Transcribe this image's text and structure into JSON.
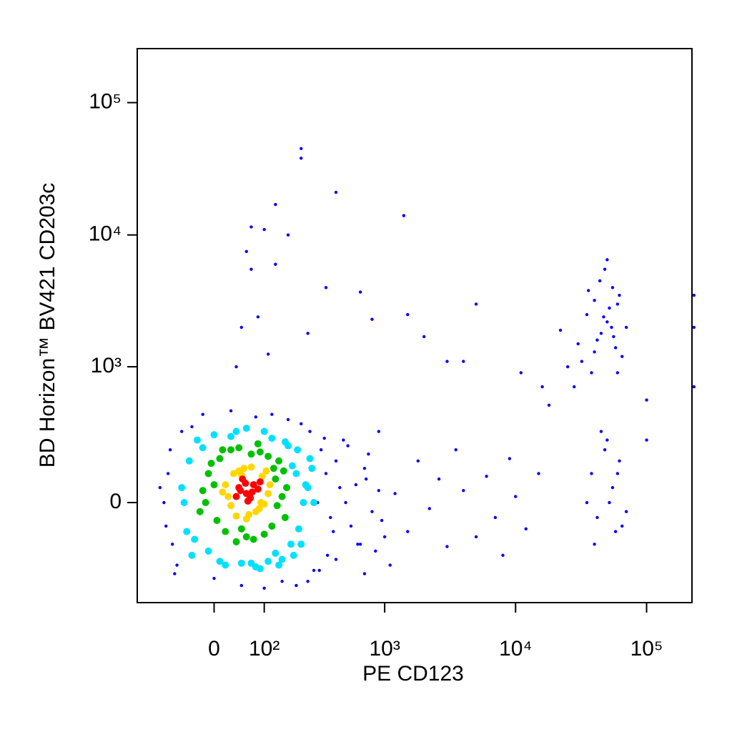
{
  "chart_data": {
    "type": "scatter",
    "xlabel": "PE CD123",
    "ylabel": "BD Horizon™ BV421 CD203c",
    "xscale": "biexponential",
    "yscale": "biexponential",
    "xlim": [
      -180,
      222000
    ],
    "ylim": [
      -525,
      256000
    ],
    "xticks": [
      0,
      {
        "value": 100,
        "label": "10²"
      },
      {
        "value": 1000,
        "label": "10³"
      },
      {
        "value": 10000,
        "label": "10⁴"
      },
      {
        "value": 100000,
        "label": "10⁵"
      }
    ],
    "yticks": [
      0,
      {
        "value": 1000,
        "label": "10³"
      },
      {
        "value": 10000,
        "label": "10⁴"
      },
      {
        "value": 100000,
        "label": "10⁵"
      }
    ],
    "series": [
      {
        "color": "#0000ff",
        "x": [
          -100,
          -90,
          -80,
          -110,
          -70,
          -85,
          -95,
          -60,
          -75,
          300,
          350,
          400,
          450,
          320,
          380,
          420,
          500,
          550,
          600,
          700,
          800,
          900,
          1000,
          650,
          750,
          480,
          360,
          280,
          250,
          200,
          150,
          100,
          50,
          0,
          -40,
          -20,
          30,
          80,
          120,
          170,
          220,
          260,
          310,
          340,
          420,
          520,
          620,
          720,
          850,
          950,
          1200,
          1500,
          1800,
          2200,
          2600,
          3000,
          3500,
          4000,
          5000,
          6000,
          7000,
          8000,
          9000,
          10000,
          12000,
          15000,
          700,
          900,
          1100,
          30000,
          35000,
          40000,
          45000,
          50000,
          55000,
          60000,
          65000,
          70000,
          38000,
          42000,
          48000,
          52000,
          58000,
          32000,
          44000,
          50000,
          56000,
          62000,
          47000,
          40000,
          54000,
          36000,
          60000,
          25000,
          22000,
          28000,
          38000,
          42000,
          48000,
          52000,
          58000,
          62000,
          45000,
          55000,
          65000,
          40000,
          50000,
          60000,
          35000,
          70000,
          220,
          220,
          420,
          130,
          70,
          100,
          1400,
          170,
          60,
          130,
          70,
          350,
          650,
          5000,
          1500,
          85,
          800,
          250,
          50,
          2000,
          110,
          3000,
          4000,
          11000,
          16000,
          18000,
          230000,
          230000,
          230000,
          100000,
          100000,
          40
        ],
        "y": [
          0,
          100,
          -150,
          50,
          -250,
          200,
          -80,
          300,
          -300,
          0,
          100,
          -100,
          50,
          200,
          -50,
          150,
          0,
          -80,
          60,
          120,
          -30,
          40,
          -120,
          -150,
          180,
          250,
          -200,
          -280,
          -350,
          -380,
          -350,
          -400,
          -380,
          -330,
          330,
          420,
          450,
          400,
          420,
          380,
          350,
          300,
          -280,
          260,
          -220,
          220,
          -150,
          80,
          -180,
          -60,
          30,
          -100,
          150,
          -20,
          80,
          -160,
          200,
          40,
          -120,
          90,
          -50,
          -200,
          160,
          20,
          -90,
          100,
          -300,
          300,
          -250,
          1500,
          2500,
          3200,
          1800,
          2200,
          4000,
          3000,
          1200,
          2000,
          900,
          1600,
          5500,
          2800,
          1400,
          1100,
          4500,
          6500,
          1700,
          3500,
          2400,
          1300,
          2000,
          3800,
          900,
          1000,
          1900,
          700,
          100,
          -50,
          200,
          0,
          -100,
          150,
          300,
          50,
          -80,
          -150,
          250,
          100,
          0,
          -30,
          45000,
          38000,
          21000,
          17000,
          11500,
          11000,
          14000,
          10000,
          7500,
          6000,
          5500,
          4000,
          3700,
          3000,
          2500,
          2400,
          2300,
          1800,
          2000,
          1700,
          1250,
          1100,
          1100,
          900,
          700,
          500,
          3500,
          2000,
          700,
          550,
          250,
          1000
        ]
      },
      {
        "color": "#00e0ff",
        "x": [
          -60,
          -45,
          -50,
          200,
          230,
          260,
          180,
          -30,
          -40,
          210,
          0,
          150,
          100,
          50,
          -10,
          120,
          20,
          240,
          170,
          80,
          -55,
          190,
          270,
          140,
          30,
          60,
          110,
          -20,
          220,
          250,
          10,
          160,
          90,
          -35,
          205,
          130,
          40,
          280,
          70,
          185
        ],
        "y": [
          50,
          150,
          -100,
          100,
          0,
          160,
          -150,
          250,
          -200,
          -90,
          280,
          -220,
          300,
          -240,
          -180,
          260,
          -250,
          60,
          220,
          -260,
          0,
          -200,
          120,
          -250,
          270,
          320,
          -230,
          210,
          -150,
          50,
          -230,
          240,
          -270,
          -130,
          200,
          -190,
          300,
          0,
          -240,
          130
        ]
      },
      {
        "color": "#00c000",
        "x": [
          -20,
          -10,
          5,
          130,
          150,
          140,
          10,
          120,
          -15,
          160,
          30,
          90,
          60,
          20,
          110,
          -5,
          135,
          75,
          45,
          100,
          0,
          155,
          -25,
          85,
          40,
          125,
          15,
          70,
          165,
          50
        ],
        "y": [
          40,
          100,
          -60,
          80,
          20,
          150,
          160,
          -80,
          0,
          -50,
          200,
          190,
          -120,
          -100,
          170,
          140,
          -10,
          -130,
          210,
          -110,
          60,
          110,
          -30,
          230,
          -140,
          120,
          200,
          180,
          50,
          -90
        ]
      },
      {
        "color": "#ffd700",
        "x": [
          20,
          35,
          95,
          110,
          30,
          100,
          55,
          80,
          25,
          105,
          65,
          45,
          88,
          40,
          70,
          115,
          15,
          60,
          92,
          50
        ],
        "y": [
          60,
          100,
          90,
          30,
          -10,
          -5,
          120,
          -30,
          20,
          110,
          -40,
          110,
          -20,
          -45,
          125,
          60,
          35,
          -55,
          0,
          95
        ]
      },
      {
        "color": "#ff0000",
        "x": [
          45,
          60,
          75,
          52,
          68,
          85,
          40,
          58,
          72,
          90,
          63,
          48
        ],
        "y": [
          50,
          30,
          60,
          80,
          15,
          45,
          20,
          65,
          35,
          70,
          5,
          40
        ]
      }
    ]
  }
}
